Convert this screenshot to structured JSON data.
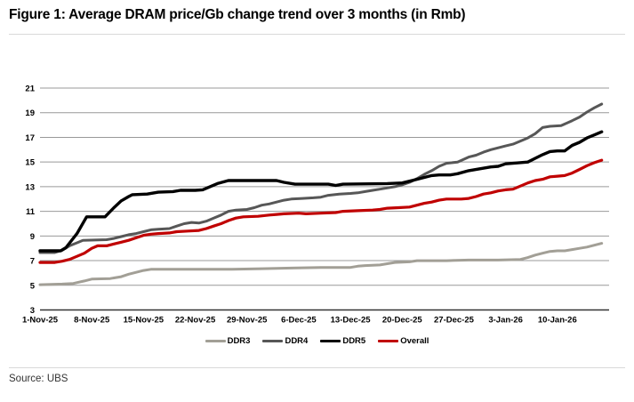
{
  "figure": {
    "title": "Figure 1: Average DRAM price/Gb change trend over 3 months (in Rmb)",
    "source": "Source: UBS"
  },
  "colors": {
    "background": "#ffffff",
    "title_text": "#000000",
    "divider": "#d9d9d9",
    "gridline": "#999999",
    "axis_line": "#333333",
    "tick_text": "#000000",
    "source_text": "#333333"
  },
  "chart_data": {
    "type": "line",
    "title": "Average DRAM price/Gb change trend over 3 months (in Rmb)",
    "xlabel": "",
    "ylabel": "",
    "grid": "horizontal",
    "legend_position": "bottom-center",
    "x_unit": "days since 1-Nov-25",
    "xlim": [
      0,
      77
    ],
    "ylim": [
      3,
      21
    ],
    "yticks": [
      3,
      5,
      7,
      9,
      11,
      13,
      15,
      17,
      19,
      21
    ],
    "xticks": [
      0,
      7,
      14,
      21,
      28,
      35,
      42,
      49,
      56,
      63,
      70
    ],
    "xticklabels": [
      "1-Nov-25",
      "8-Nov-25",
      "15-Nov-25",
      "22-Nov-25",
      "29-Nov-25",
      "6-Dec-25",
      "13-Dec-25",
      "20-Dec-25",
      "27-Dec-25",
      "3-Jan-26",
      "10-Jan-26"
    ],
    "series": [
      {
        "name": "DDR3",
        "color": "#a29f96",
        "stroke_width": 3,
        "points": [
          [
            0,
            5.05
          ],
          [
            3,
            5.1
          ],
          [
            4.5,
            5.15
          ],
          [
            6,
            5.35
          ],
          [
            7,
            5.5
          ],
          [
            9.5,
            5.55
          ],
          [
            11,
            5.7
          ],
          [
            12,
            5.9
          ],
          [
            13,
            6.05
          ],
          [
            14,
            6.2
          ],
          [
            15,
            6.3
          ],
          [
            26,
            6.3
          ],
          [
            30,
            6.35
          ],
          [
            34,
            6.4
          ],
          [
            38,
            6.45
          ],
          [
            42,
            6.45
          ],
          [
            43,
            6.55
          ],
          [
            44,
            6.6
          ],
          [
            46,
            6.65
          ],
          [
            47,
            6.75
          ],
          [
            48,
            6.85
          ],
          [
            50,
            6.9
          ],
          [
            51,
            7.0
          ],
          [
            55,
            7.0
          ],
          [
            58,
            7.05
          ],
          [
            62,
            7.05
          ],
          [
            65,
            7.1
          ],
          [
            66,
            7.25
          ],
          [
            67,
            7.45
          ],
          [
            68,
            7.6
          ],
          [
            69,
            7.75
          ],
          [
            70,
            7.8
          ],
          [
            71,
            7.8
          ],
          [
            72,
            7.9
          ],
          [
            73,
            8.0
          ],
          [
            74,
            8.1
          ],
          [
            75,
            8.25
          ],
          [
            76,
            8.4
          ]
        ]
      },
      {
        "name": "DDR4",
        "color": "#575757",
        "stroke_width": 3,
        "points": [
          [
            0,
            7.65
          ],
          [
            2,
            7.65
          ],
          [
            3,
            7.85
          ],
          [
            4,
            8.2
          ],
          [
            5,
            8.45
          ],
          [
            5.8,
            8.65
          ],
          [
            9,
            8.7
          ],
          [
            10,
            8.8
          ],
          [
            11,
            8.95
          ],
          [
            12,
            9.1
          ],
          [
            13,
            9.2
          ],
          [
            14,
            9.35
          ],
          [
            15,
            9.5
          ],
          [
            16,
            9.55
          ],
          [
            17.5,
            9.6
          ],
          [
            18.5,
            9.8
          ],
          [
            19.5,
            10.0
          ],
          [
            20.5,
            10.1
          ],
          [
            21.5,
            10.05
          ],
          [
            22.5,
            10.2
          ],
          [
            23.5,
            10.45
          ],
          [
            24.5,
            10.7
          ],
          [
            25.5,
            11.0
          ],
          [
            26.5,
            11.1
          ],
          [
            28,
            11.15
          ],
          [
            29,
            11.3
          ],
          [
            30,
            11.5
          ],
          [
            31,
            11.6
          ],
          [
            32,
            11.75
          ],
          [
            33,
            11.9
          ],
          [
            34,
            12.0
          ],
          [
            35.5,
            12.05
          ],
          [
            37,
            12.1
          ],
          [
            38,
            12.15
          ],
          [
            39,
            12.3
          ],
          [
            40.5,
            12.4
          ],
          [
            42,
            12.45
          ],
          [
            43,
            12.5
          ],
          [
            44,
            12.6
          ],
          [
            45,
            12.7
          ],
          [
            46,
            12.8
          ],
          [
            47,
            12.9
          ],
          [
            48,
            13.0
          ],
          [
            49,
            13.15
          ],
          [
            50,
            13.35
          ],
          [
            51,
            13.65
          ],
          [
            52,
            14.0
          ],
          [
            53,
            14.3
          ],
          [
            54,
            14.65
          ],
          [
            55,
            14.9
          ],
          [
            56.5,
            15.0
          ],
          [
            58,
            15.4
          ],
          [
            59,
            15.55
          ],
          [
            60,
            15.8
          ],
          [
            61,
            16.0
          ],
          [
            62,
            16.15
          ],
          [
            63,
            16.3
          ],
          [
            64,
            16.45
          ],
          [
            65,
            16.7
          ],
          [
            66,
            16.95
          ],
          [
            67,
            17.3
          ],
          [
            68,
            17.8
          ],
          [
            69,
            17.9
          ],
          [
            70.5,
            17.95
          ],
          [
            72,
            18.35
          ],
          [
            73,
            18.65
          ],
          [
            74,
            19.05
          ],
          [
            75,
            19.4
          ],
          [
            76,
            19.7
          ]
        ]
      },
      {
        "name": "DDR5",
        "color": "#000000",
        "stroke_width": 3.4,
        "points": [
          [
            0,
            7.8
          ],
          [
            2.8,
            7.8
          ],
          [
            3.5,
            8.05
          ],
          [
            5,
            9.2
          ],
          [
            6.3,
            10.55
          ],
          [
            8.8,
            10.55
          ],
          [
            10,
            11.3
          ],
          [
            11,
            11.85
          ],
          [
            12,
            12.2
          ],
          [
            12.5,
            12.35
          ],
          [
            14.5,
            12.4
          ],
          [
            16,
            12.55
          ],
          [
            18,
            12.6
          ],
          [
            19,
            12.7
          ],
          [
            21,
            12.7
          ],
          [
            22,
            12.75
          ],
          [
            23,
            13.0
          ],
          [
            24,
            13.25
          ],
          [
            25.5,
            13.5
          ],
          [
            32,
            13.5
          ],
          [
            33,
            13.35
          ],
          [
            34.5,
            13.2
          ],
          [
            39,
            13.2
          ],
          [
            40,
            13.1
          ],
          [
            41,
            13.2
          ],
          [
            47,
            13.25
          ],
          [
            49,
            13.3
          ],
          [
            50,
            13.45
          ],
          [
            51,
            13.6
          ],
          [
            52,
            13.75
          ],
          [
            53,
            13.9
          ],
          [
            54,
            13.95
          ],
          [
            55.5,
            13.95
          ],
          [
            56.5,
            14.05
          ],
          [
            58,
            14.3
          ],
          [
            59.5,
            14.45
          ],
          [
            61,
            14.6
          ],
          [
            62,
            14.65
          ],
          [
            63,
            14.85
          ],
          [
            64,
            14.9
          ],
          [
            66,
            15.0
          ],
          [
            67,
            15.3
          ],
          [
            68,
            15.6
          ],
          [
            69,
            15.85
          ],
          [
            70,
            15.9
          ],
          [
            71,
            15.9
          ],
          [
            72,
            16.35
          ],
          [
            73,
            16.6
          ],
          [
            74,
            16.95
          ],
          [
            75,
            17.2
          ],
          [
            76,
            17.45
          ]
        ]
      },
      {
        "name": "Overall",
        "color": "#c00000",
        "stroke_width": 3.2,
        "points": [
          [
            0,
            6.85
          ],
          [
            2,
            6.85
          ],
          [
            3,
            6.95
          ],
          [
            4,
            7.1
          ],
          [
            5,
            7.35
          ],
          [
            6,
            7.6
          ],
          [
            7,
            8.0
          ],
          [
            7.8,
            8.2
          ],
          [
            9,
            8.2
          ],
          [
            10,
            8.35
          ],
          [
            11,
            8.5
          ],
          [
            12,
            8.65
          ],
          [
            13,
            8.85
          ],
          [
            14,
            9.05
          ],
          [
            15,
            9.15
          ],
          [
            16,
            9.2
          ],
          [
            17.5,
            9.25
          ],
          [
            18.5,
            9.35
          ],
          [
            20,
            9.4
          ],
          [
            21.5,
            9.45
          ],
          [
            22.5,
            9.6
          ],
          [
            23.5,
            9.8
          ],
          [
            24.5,
            10.0
          ],
          [
            25.5,
            10.25
          ],
          [
            26.5,
            10.45
          ],
          [
            27.5,
            10.55
          ],
          [
            29.5,
            10.6
          ],
          [
            31,
            10.7
          ],
          [
            32,
            10.75
          ],
          [
            33,
            10.8
          ],
          [
            35,
            10.85
          ],
          [
            36,
            10.8
          ],
          [
            38,
            10.85
          ],
          [
            40,
            10.9
          ],
          [
            41,
            11.0
          ],
          [
            43,
            11.05
          ],
          [
            45,
            11.1
          ],
          [
            46,
            11.15
          ],
          [
            47,
            11.25
          ],
          [
            48.5,
            11.3
          ],
          [
            50,
            11.35
          ],
          [
            51,
            11.5
          ],
          [
            52,
            11.65
          ],
          [
            53,
            11.75
          ],
          [
            54,
            11.9
          ],
          [
            55,
            12.0
          ],
          [
            57,
            12.0
          ],
          [
            58,
            12.05
          ],
          [
            59,
            12.2
          ],
          [
            60,
            12.4
          ],
          [
            61,
            12.5
          ],
          [
            62,
            12.65
          ],
          [
            63,
            12.75
          ],
          [
            64,
            12.8
          ],
          [
            65,
            13.05
          ],
          [
            66,
            13.3
          ],
          [
            67,
            13.5
          ],
          [
            68,
            13.6
          ],
          [
            69,
            13.8
          ],
          [
            70,
            13.85
          ],
          [
            71,
            13.9
          ],
          [
            72,
            14.1
          ],
          [
            73,
            14.4
          ],
          [
            74,
            14.7
          ],
          [
            75,
            14.95
          ],
          [
            76,
            15.15
          ]
        ]
      }
    ]
  }
}
